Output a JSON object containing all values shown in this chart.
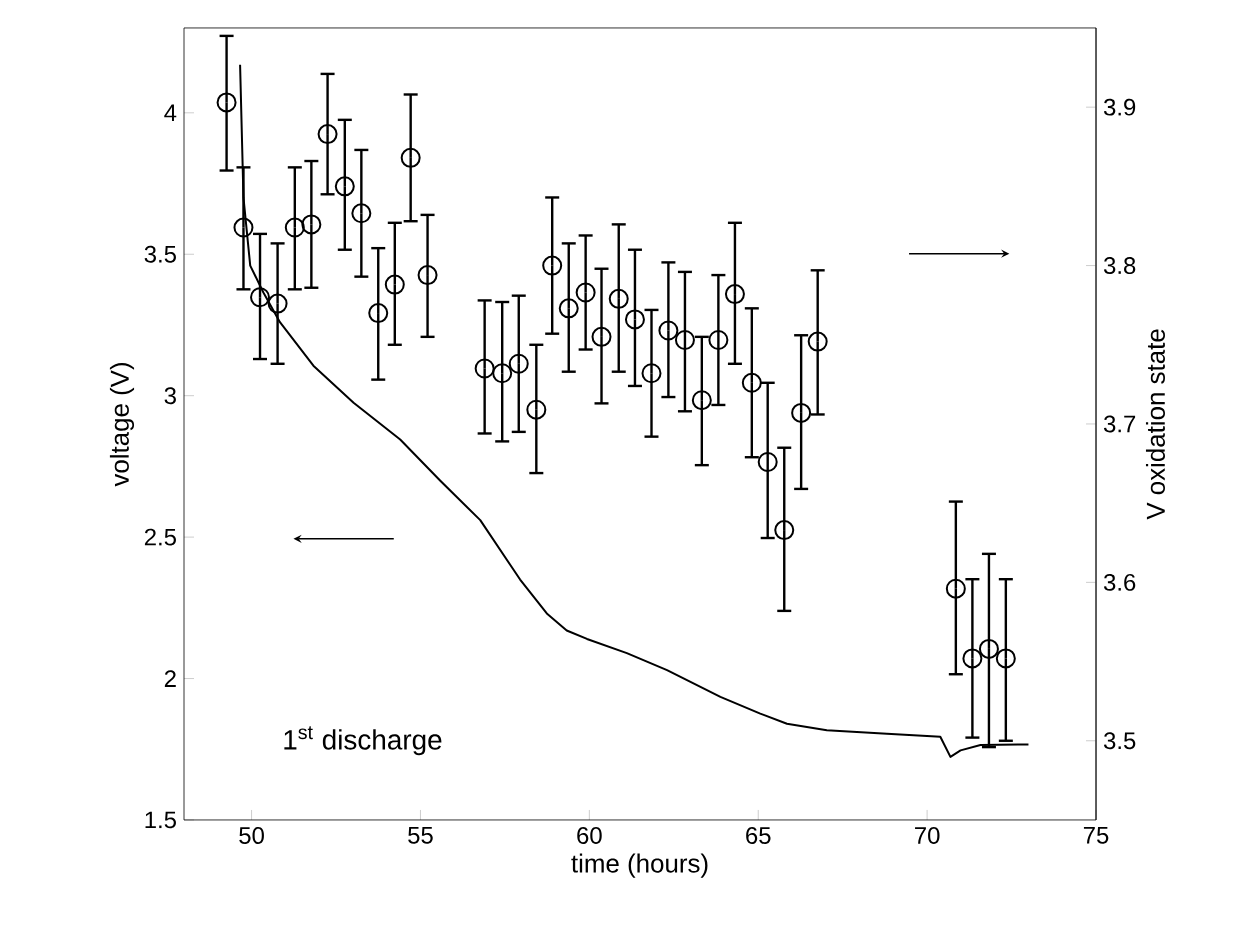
{
  "chart_data": {
    "type": "line",
    "xlabel": "time (hours)",
    "ylabel": "voltage (V)",
    "y2label": "V oxidation state",
    "annotations": [
      "1$^{st}$ discharge"
    ],
    "xlim": [
      48,
      75
    ],
    "xticks": [
      50,
      55,
      60,
      65,
      70,
      75
    ],
    "ylim": [
      1.5,
      4.3
    ],
    "yticks": [
      1.5,
      2,
      2.5,
      3,
      3.5,
      4
    ],
    "y2lim": [
      3.45,
      3.95
    ],
    "y2ticks": [
      3.5,
      3.6,
      3.7,
      3.8,
      3.9
    ],
    "grid": false,
    "series": [
      {
        "color": "#000000",
        "marker": "none",
        "line_style": "solid",
        "x": [
          49.66,
          49.76,
          49.96,
          50.35,
          50.84,
          51.83,
          53.02,
          54.4,
          55.58,
          56.77,
          57.95,
          58.74,
          59.33,
          59.93,
          61.11,
          62.3,
          63.88,
          65.06,
          65.85,
          67.03,
          68.81,
          70.39,
          70.69,
          70.99,
          71.58,
          72.76,
          73.0
        ],
        "values": [
          4.17,
          3.7,
          3.46,
          3.365,
          3.26,
          3.106,
          2.975,
          2.845,
          2.7,
          2.56,
          2.35,
          2.23,
          2.17,
          2.14,
          2.09,
          2.03,
          1.935,
          1.876,
          1.84,
          1.817,
          1.805,
          1.794,
          1.723,
          1.746,
          1.765,
          1.767,
          1.767
        ]
      },
      {
        "type": "scatter",
        "axis": "y2",
        "color": "#000000",
        "marker": "circle",
        "x": [
          49.26,
          49.76,
          50.25,
          50.77,
          51.28,
          51.77,
          52.25,
          52.76,
          53.25,
          53.75,
          54.24,
          54.71,
          55.21,
          56.9,
          57.42,
          57.91,
          58.43,
          58.9,
          59.39,
          59.89,
          60.36,
          60.87,
          61.35,
          61.84,
          62.34,
          62.83,
          63.33,
          63.82,
          64.31,
          64.81,
          65.28,
          65.77,
          66.27,
          66.76,
          70.85,
          71.34,
          71.83,
          72.33
        ],
        "values": [
          3.903,
          3.824,
          3.78,
          3.776,
          3.824,
          3.826,
          3.883,
          3.85,
          3.833,
          3.77,
          3.788,
          3.868,
          3.794,
          3.735,
          3.732,
          3.738,
          3.709,
          3.8,
          3.773,
          3.783,
          3.755,
          3.779,
          3.766,
          3.732,
          3.759,
          3.753,
          3.715,
          3.753,
          3.782,
          3.726,
          3.676,
          3.633,
          3.707,
          3.752,
          3.596,
          3.552,
          3.558,
          3.552
        ],
        "errors": [
          [
            3.86,
            3.945
          ],
          [
            3.785,
            3.862
          ],
          [
            3.741,
            3.82
          ],
          [
            3.738,
            3.814
          ],
          [
            3.785,
            3.862
          ],
          [
            3.786,
            3.866
          ],
          [
            3.845,
            3.921
          ],
          [
            3.81,
            3.892
          ],
          [
            3.793,
            3.873
          ],
          [
            3.728,
            3.811
          ],
          [
            3.75,
            3.827
          ],
          [
            3.828,
            3.908
          ],
          [
            3.755,
            3.832
          ],
          [
            3.694,
            3.778
          ],
          [
            3.689,
            3.777
          ],
          [
            3.695,
            3.781
          ],
          [
            3.669,
            3.75
          ],
          [
            3.757,
            3.843
          ],
          [
            3.733,
            3.814
          ],
          [
            3.747,
            3.819
          ],
          [
            3.713,
            3.798
          ],
          [
            3.733,
            3.826
          ],
          [
            3.724,
            3.81
          ],
          [
            3.692,
            3.772
          ],
          [
            3.717,
            3.802
          ],
          [
            3.708,
            3.796
          ],
          [
            3.674,
            3.755
          ],
          [
            3.712,
            3.794
          ],
          [
            3.738,
            3.827
          ],
          [
            3.679,
            3.773
          ],
          [
            3.628,
            3.726
          ],
          [
            3.582,
            3.685
          ],
          [
            3.659,
            3.756
          ],
          [
            3.706,
            3.797
          ],
          [
            3.542,
            3.651
          ],
          [
            3.502,
            3.602
          ],
          [
            3.496,
            3.618
          ],
          [
            3.5,
            3.602
          ]
        ]
      }
    ]
  }
}
